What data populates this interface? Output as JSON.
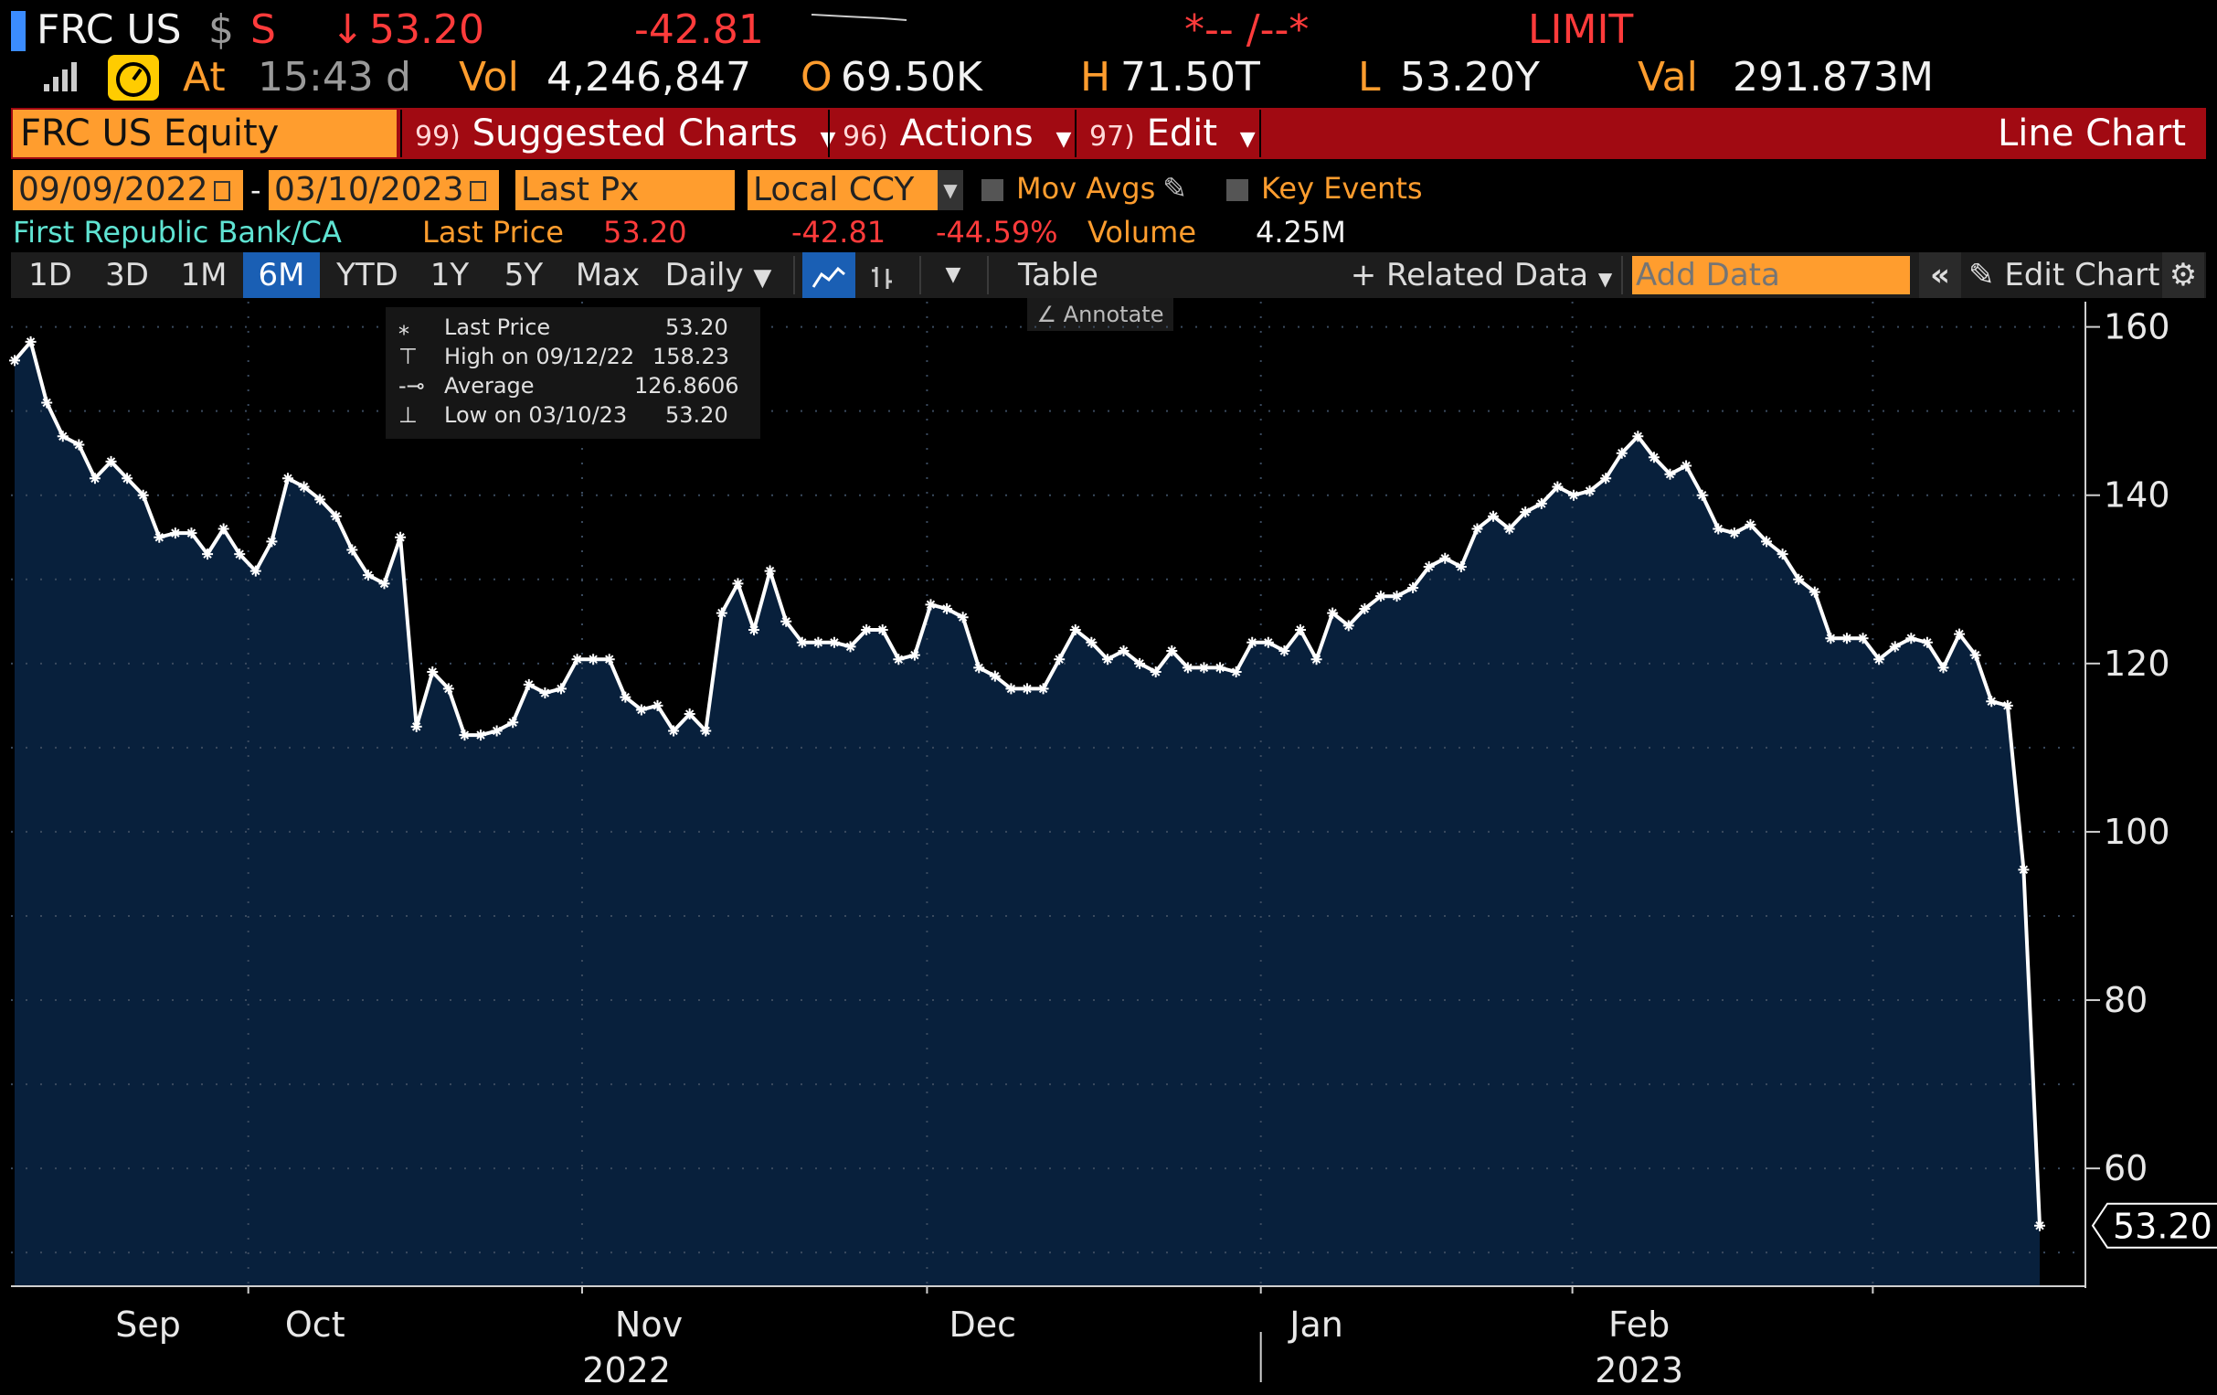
{
  "ticker": {
    "symbol": "FRC US",
    "currency": "$",
    "exchange": "S",
    "arrow": "↓",
    "last": "53.20",
    "change": "-42.81",
    "bidask": "*-- /--*",
    "limit": "LIMIT"
  },
  "quote": {
    "at_label": "At",
    "time": "15:43",
    "time_suffix": "d",
    "vol_label": "Vol",
    "vol": "4,246,847",
    "open_label": "O",
    "open": "69.50K",
    "high_label": "H",
    "high": "71.50T",
    "low_label": "L",
    "low": "53.20Y",
    "val_label": "Val",
    "val": "291.873M"
  },
  "menu": {
    "security": "FRC US Equity",
    "items": [
      {
        "num": "99)",
        "label": "Suggested Charts"
      },
      {
        "num": "96)",
        "label": "Actions"
      },
      {
        "num": "97)",
        "label": "Edit"
      }
    ],
    "chart_type": "Line Chart"
  },
  "controls": {
    "start_date": "09/09/2022",
    "dash": "-",
    "end_date": "03/10/2023",
    "field": "Last Px",
    "currency": "Local CCY",
    "mov_avgs": "Mov Avgs",
    "key_events": "Key Events"
  },
  "summary": {
    "name": "First Republic Bank/CA",
    "last_label": "Last Price",
    "last": "53.20",
    "change": "-42.81",
    "pct": "-44.59%",
    "volume_label": "Volume",
    "volume": "4.25M"
  },
  "toolbar": {
    "periods": [
      "1D",
      "3D",
      "1M",
      "6M",
      "YTD",
      "1Y",
      "5Y",
      "Max"
    ],
    "active": "6M",
    "frequency": "Daily",
    "table": "Table",
    "related": "+ Related Data",
    "add_data_placeholder": "Add Data",
    "edit_chart": "Edit Chart",
    "annotate": "Annotate"
  },
  "legend": {
    "rows": [
      {
        "label": "Last Price",
        "value": "53.20"
      },
      {
        "label": "High on 09/12/22",
        "value": "158.23"
      },
      {
        "label": "Average",
        "value": "126.8606"
      },
      {
        "label": "Low on 03/10/23",
        "value": "53.20"
      }
    ]
  },
  "chart_data": {
    "type": "area",
    "series": [
      {
        "values": [
          156,
          158.23,
          151,
          147,
          146,
          142,
          144,
          142,
          140,
          135,
          135.5,
          135.5,
          133,
          136,
          133,
          131,
          134.5,
          142,
          141,
          139.5,
          137.5,
          133.5,
          130.5,
          129.5,
          135,
          112.5,
          119,
          117,
          111.5,
          111.5,
          112,
          113,
          117.5,
          116.5,
          117,
          120.5,
          120.5,
          120.5,
          116,
          114.5,
          115,
          112,
          114,
          112,
          126,
          129.5,
          124,
          131,
          125,
          122.5,
          122.5,
          122.5,
          122,
          124,
          124,
          120.5,
          121,
          127,
          126.5,
          125.5,
          119.5,
          118.5,
          117,
          117,
          117,
          120.5,
          124,
          122.5,
          120.5,
          121.5,
          120,
          119,
          121.5,
          119.5,
          119.5,
          119.5,
          119,
          122.5,
          122.5,
          121.5,
          124,
          120.5,
          126,
          124.5,
          126.5,
          128,
          128,
          129,
          131.5,
          132.5,
          131.5,
          136,
          137.5,
          136,
          138,
          139,
          141,
          140,
          140.5,
          142,
          145,
          147,
          144.5,
          142.5,
          143.5,
          140,
          136,
          135.5,
          136.5,
          134.5,
          133,
          130,
          128.5,
          123,
          123,
          123,
          120.5,
          122,
          123,
          122.5,
          119.5,
          123.5,
          121,
          115.5,
          115,
          95.5,
          53.2
        ]
      }
    ],
    "x_start": "2022-09-09",
    "x_end": "2023-03-10",
    "month_labels": [
      "Sep",
      "Oct",
      "Nov",
      "Dec",
      "Jan",
      "Feb"
    ],
    "month_label_days": [
      12,
      27,
      57,
      87,
      117,
      146
    ],
    "month_boundary_days": [
      21,
      51,
      82,
      112,
      140,
      167
    ],
    "year_labels": [
      "2022",
      "2023"
    ],
    "year_label_days": [
      55,
      146
    ],
    "year_boundary_day": 112,
    "y_ticks": [
      160,
      140,
      120,
      100,
      80,
      60
    ],
    "ylim": [
      46,
      163
    ],
    "last_label": "53.20",
    "grid": false
  },
  "colors": {
    "background": "#000000",
    "area": "#08203c",
    "line": "#ffffff",
    "amber": "#ff9d2e",
    "red": "#ff3b3b",
    "menu_red": "#a10a12",
    "active": "#1a5fb4"
  }
}
